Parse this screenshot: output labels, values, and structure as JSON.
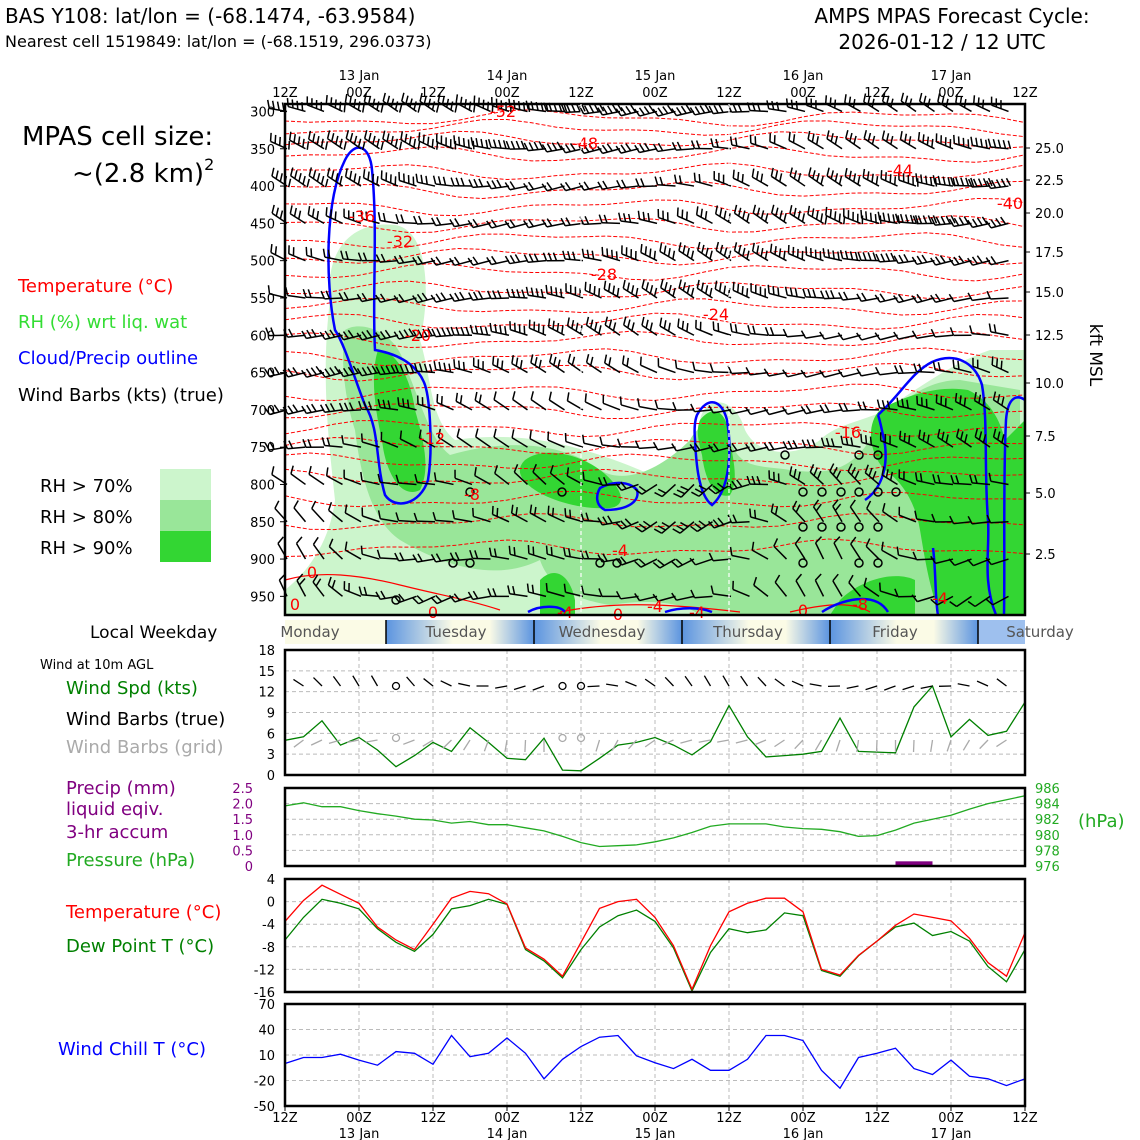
{
  "header": {
    "station": "BAS Y108: lat/lon = (-68.1474, -63.9584)",
    "nearest_cell": "Nearest cell 1519849: lat/lon = (-68.1519, 296.0373)",
    "cycle_line1": "AMPS MPAS Forecast Cycle:",
    "cycle_line2": "2026-01-12 / 12 UTC"
  },
  "cell_size": {
    "line1": "MPAS cell size:",
    "line2": "~(2.8 km)",
    "superscript": "2"
  },
  "colors": {
    "temperature": "#ff0000",
    "rh_label": "#33dd33",
    "cloud_outline": "#0000ff",
    "rh70": "#ccf5cc",
    "rh80": "#99e699",
    "rh90": "#33d633",
    "wind_speed": "#008000",
    "dewpoint": "#008000",
    "precip": "#800080",
    "pressure": "#22aa22",
    "wind_chill": "#0000ff",
    "grid_barbs": "#aaaaaa"
  },
  "legend": {
    "temperature": "Temperature (°C)",
    "rh": "RH (%) wrt liq. wat",
    "cloud": "Cloud/Precip outline",
    "wind_barbs": "Wind Barbs (kts) (true)",
    "rh70": "RH > 70%",
    "rh80": "RH > 80%",
    "rh90": "RH > 90%"
  },
  "weekday": {
    "label": "Local Weekday",
    "days": [
      "Monday",
      "Tuesday",
      "Wednesday",
      "Thursday",
      "Friday",
      "Saturday"
    ]
  },
  "time_axis": {
    "tick_labels": [
      "12Z",
      "00Z",
      "12Z",
      "00Z",
      "12Z",
      "00Z",
      "12Z",
      "00Z",
      "12Z",
      "00Z",
      "12Z"
    ],
    "date_labels": [
      "13 Jan",
      "14 Jan",
      "15 Jan",
      "16 Jan",
      "17 Jan"
    ],
    "forecast_hours_max": 120
  },
  "sounding": {
    "ylabel_right": "kft MSL",
    "pressure_levels": [
      "300",
      "350",
      "400",
      "450",
      "500",
      "550",
      "600",
      "650",
      "700",
      "750",
      "800",
      "850",
      "900",
      "950"
    ],
    "kft_levels": [
      "25.0",
      "22.5",
      "20.0",
      "17.5",
      "15.0",
      "12.5",
      "10.0",
      "7.5",
      "5.0",
      "2.5"
    ],
    "temp_labels": [
      "-52",
      "-48",
      "-44",
      "-40",
      "-36",
      "-32",
      "-28",
      "-24",
      "-20",
      "-16",
      "-12",
      "-8",
      "-4",
      "-4",
      "-4",
      "-4",
      "-8",
      "0",
      "0",
      "0",
      "0",
      "0",
      "-4"
    ]
  },
  "surface": {
    "wind_title": "Wind at 10m AGL",
    "wind_speed_label": "Wind Spd (kts)",
    "wind_barbs_true": "Wind Barbs (true)",
    "wind_barbs_grid": "Wind Barbs (grid)",
    "precip_label1": "Precip (mm)",
    "precip_label2": "liquid eqiv.",
    "precip_label3": "3-hr accum",
    "pressure_label": "Pressure (hPa)",
    "pressure_unit": "(hPa)",
    "temp_label": "Temperature (°C)",
    "dew_label": "Dew Point T (°C)",
    "chill_label": "Wind Chill T (°C)"
  },
  "chart_data": [
    {
      "type": "line",
      "name": "surface-wind-speed",
      "ylim": [
        0,
        18
      ],
      "yticks": [
        "0",
        "3",
        "6",
        "9",
        "12",
        "15",
        "18"
      ],
      "x_hours": [
        0,
        3,
        6,
        9,
        12,
        15,
        18,
        21,
        24,
        27,
        30,
        33,
        36,
        39,
        42,
        45,
        48,
        51,
        54,
        57,
        60,
        63,
        66,
        69,
        72,
        75,
        78,
        81,
        84,
        87,
        90,
        93,
        96,
        99,
        102,
        105,
        108,
        111,
        114,
        117,
        120
      ],
      "values": [
        5,
        5.5,
        7.8,
        4.3,
        5.4,
        3.6,
        1.2,
        2.8,
        4.7,
        3.4,
        6.8,
        4.7,
        2.4,
        2.2,
        5.3,
        0.7,
        0.6,
        2.4,
        4.3,
        4.7,
        5.4,
        4.3,
        2.9,
        4.8,
        10,
        5.5,
        2.6,
        2.8,
        3,
        3.4,
        8.2,
        3.4,
        3.3,
        3.2,
        9.8,
        12.8,
        5.5,
        8,
        5.7,
        6.3,
        10.5
      ]
    },
    {
      "type": "line",
      "name": "pressure",
      "ylim": [
        976,
        986
      ],
      "yticks": [
        "976",
        "978",
        "980",
        "982",
        "984",
        "986"
      ],
      "precip_ylim": [
        0,
        2.5
      ],
      "precip_yticks": [
        "0",
        "0.5",
        "1.0",
        "1.5",
        "2.0",
        "2.5"
      ],
      "x_hours": [
        0,
        3,
        6,
        9,
        12,
        15,
        18,
        21,
        24,
        27,
        30,
        33,
        36,
        39,
        42,
        45,
        48,
        51,
        54,
        57,
        60,
        63,
        66,
        69,
        72,
        75,
        78,
        81,
        84,
        87,
        90,
        93,
        96,
        99,
        102,
        105,
        108,
        111,
        114,
        117,
        120
      ],
      "values": [
        983.7,
        984.1,
        983.6,
        983.6,
        983.1,
        982.7,
        982.4,
        982.0,
        981.9,
        981.5,
        981.7,
        981.3,
        981.3,
        980.9,
        980.5,
        979.8,
        979.0,
        978.5,
        978.6,
        978.7,
        979.1,
        979.6,
        980.3,
        981.1,
        981.4,
        981.4,
        981.4,
        981.0,
        980.8,
        980.7,
        980.4,
        979.8,
        979.9,
        980.6,
        981.5,
        982.0,
        982.5,
        983.3,
        984.0,
        984.5,
        985.0
      ],
      "precip": [
        {
          "x_start": 99,
          "x_end": 105,
          "value": 0.15
        }
      ]
    },
    {
      "type": "line",
      "name": "temperature-dewpoint",
      "ylim": [
        -16,
        4
      ],
      "yticks": [
        "-16",
        "-12",
        "-8",
        "-4",
        "0",
        "4"
      ],
      "x_hours": [
        0,
        3,
        6,
        9,
        12,
        15,
        18,
        21,
        24,
        27,
        30,
        33,
        36,
        39,
        42,
        45,
        48,
        51,
        54,
        57,
        60,
        63,
        66,
        69,
        72,
        75,
        78,
        81,
        84,
        87,
        90,
        93,
        96,
        99,
        102,
        105,
        108,
        111,
        114,
        117,
        120
      ],
      "series": [
        {
          "name": "Temperature (°C)",
          "values": [
            -3.5,
            0.2,
            2.9,
            1.3,
            -0.3,
            -4.5,
            -6.8,
            -8.5,
            -4.0,
            0.6,
            1.8,
            1.4,
            -0.4,
            -8.2,
            -10.2,
            -13.2,
            -7.2,
            -1.2,
            0.0,
            0.4,
            -2.8,
            -7.8,
            -15.5,
            -7.8,
            -1.8,
            -0.3,
            0.6,
            0.6,
            -1.8,
            -12.0,
            -13.0,
            -9.5,
            -7.0,
            -4.2,
            -2.2,
            -2.8,
            -3.4,
            -6.5,
            -10.8,
            -13.2,
            -5.5
          ]
        },
        {
          "name": "Dew Point T (°C)",
          "values": [
            -6.8,
            -2.8,
            0.4,
            -0.3,
            -1.3,
            -4.8,
            -7.2,
            -8.8,
            -5.8,
            -1.3,
            -0.7,
            0.4,
            -0.5,
            -8.5,
            -10.5,
            -13.5,
            -8.5,
            -4.5,
            -2.5,
            -1.5,
            -3.5,
            -8.2,
            -15.8,
            -9.0,
            -4.8,
            -5.5,
            -5.0,
            -2.0,
            -2.5,
            -12.2,
            -13.2,
            -9.6,
            -7.0,
            -4.5,
            -3.8,
            -6.0,
            -5.3,
            -7.0,
            -11.5,
            -14.2,
            -8.5
          ]
        }
      ]
    },
    {
      "type": "line",
      "name": "wind-chill",
      "ylim": [
        -50,
        70
      ],
      "yticks": [
        "-50",
        "-20",
        "10",
        "40",
        "70"
      ],
      "x_hours": [
        0,
        3,
        6,
        9,
        12,
        15,
        18,
        21,
        24,
        27,
        30,
        33,
        36,
        39,
        42,
        45,
        48,
        51,
        54,
        57,
        60,
        63,
        66,
        69,
        72,
        75,
        78,
        81,
        84,
        87,
        90,
        93,
        96,
        99,
        102,
        105,
        108,
        111,
        114,
        117,
        120
      ],
      "values": [
        0,
        7,
        7,
        11,
        4,
        -2,
        14,
        12,
        -1,
        33,
        8,
        12,
        30,
        12,
        -18,
        5,
        20,
        31,
        33,
        9,
        1,
        -6,
        5,
        -8,
        -8,
        5,
        33,
        33,
        27,
        -8,
        -29,
        7,
        12,
        18,
        -6,
        -13,
        4,
        -15,
        -18,
        -26,
        -18
      ]
    }
  ]
}
